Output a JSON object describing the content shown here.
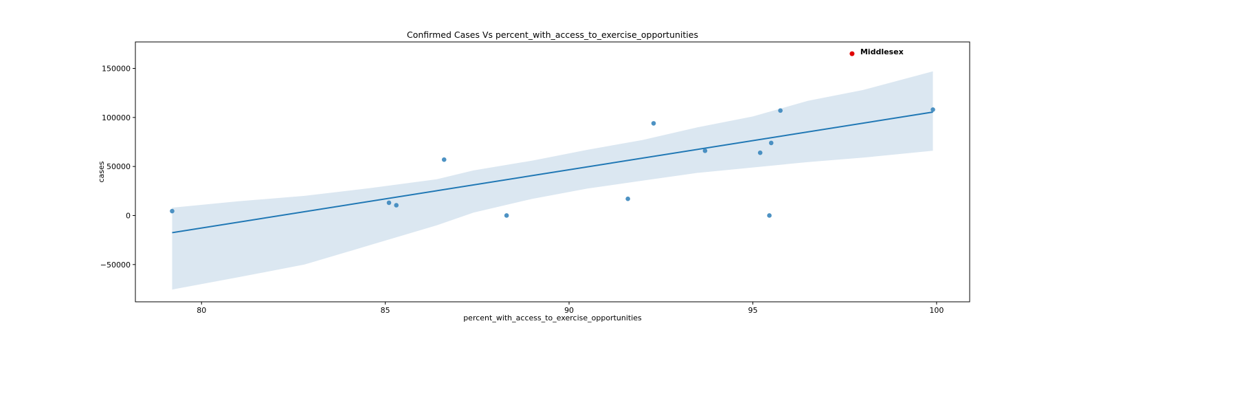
{
  "chart_data": {
    "type": "scatter",
    "title": "Confirmed Cases Vs percent_with_access_to_exercise_opportunities",
    "xlabel": "percent_with_access_to_exercise_opportunities",
    "ylabel": "cases",
    "xlim": [
      78.2,
      100.9
    ],
    "ylim": [
      -88000,
      177000
    ],
    "x_ticks": [
      80,
      85,
      90,
      95,
      100
    ],
    "y_ticks": [
      -50000,
      0,
      50000,
      100000,
      150000
    ],
    "y_tick_labels": [
      "−50000",
      "0",
      "50000",
      "100000",
      "150000"
    ],
    "grid": false,
    "colors": {
      "points": "#3a86bc",
      "line": "#1f77b4",
      "band": "#dbe7f1",
      "highlight": "#e00000"
    },
    "series": [
      {
        "points": [
          [
            79.2,
            4500
          ],
          [
            85.1,
            13000
          ],
          [
            85.3,
            10500
          ],
          [
            86.6,
            57000
          ],
          [
            88.3,
            0
          ],
          [
            91.6,
            17000
          ],
          [
            92.3,
            94000
          ],
          [
            93.7,
            66000
          ],
          [
            95.2,
            64000
          ],
          [
            95.45,
            0
          ],
          [
            95.5,
            74000
          ],
          [
            95.75,
            107000
          ],
          [
            99.9,
            108000
          ]
        ]
      }
    ],
    "regression": {
      "x_start": 79.2,
      "x_end": 99.9,
      "y_start": -17500,
      "y_end": 105500,
      "band": [
        {
          "x": 79.2,
          "upper": 8000,
          "lower": -75500
        },
        {
          "x": 81.0,
          "upper": 14500,
          "lower": -63000
        },
        {
          "x": 82.8,
          "upper": 20000,
          "lower": -50000
        },
        {
          "x": 84.6,
          "upper": 28000,
          "lower": -30000
        },
        {
          "x": 86.4,
          "upper": 37000,
          "lower": -10000
        },
        {
          "x": 87.4,
          "upper": 46000,
          "lower": 3000
        },
        {
          "x": 89.0,
          "upper": 56000,
          "lower": 17000
        },
        {
          "x": 90.5,
          "upper": 67000,
          "lower": 27500
        },
        {
          "x": 92.0,
          "upper": 77000,
          "lower": 35500
        },
        {
          "x": 93.5,
          "upper": 90000,
          "lower": 43500
        },
        {
          "x": 95.0,
          "upper": 101000,
          "lower": 49000
        },
        {
          "x": 96.5,
          "upper": 117000,
          "lower": 54500
        },
        {
          "x": 98.0,
          "upper": 128000,
          "lower": 59000
        },
        {
          "x": 99.9,
          "upper": 147000,
          "lower": 66000
        }
      ]
    },
    "highlight": {
      "label": "Middlesex",
      "x": 97.7,
      "y": 165000
    }
  }
}
